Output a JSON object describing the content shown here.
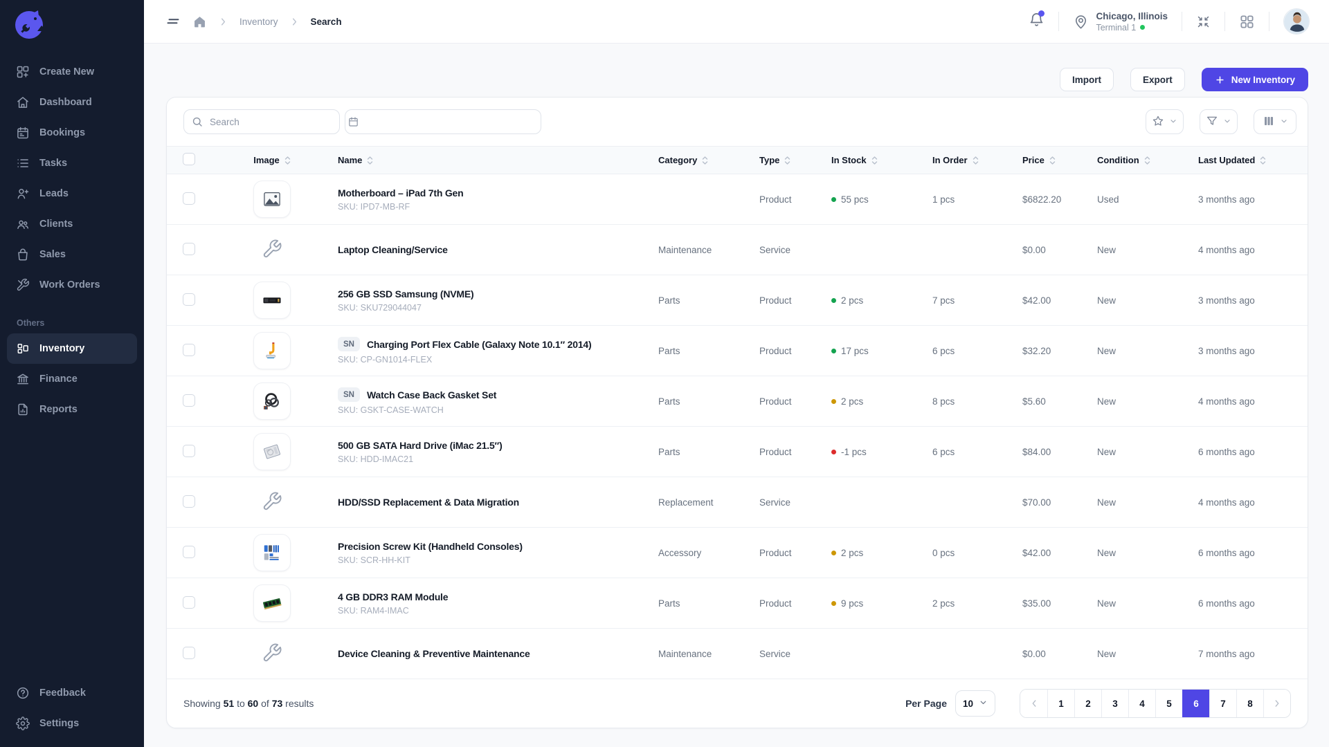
{
  "topbar": {
    "breadcrumb": {
      "level1": "Inventory",
      "level2": "Search"
    },
    "location": {
      "city": "Chicago, Illinois",
      "terminal": "Terminal 1"
    }
  },
  "sidebar": {
    "items": [
      {
        "label": "Create New",
        "icon": "grid-plus-icon"
      },
      {
        "label": "Dashboard",
        "icon": "home-icon"
      },
      {
        "label": "Bookings",
        "icon": "calendar-icon"
      },
      {
        "label": "Tasks",
        "icon": "list-icon"
      },
      {
        "label": "Leads",
        "icon": "user-plus-icon"
      },
      {
        "label": "Clients",
        "icon": "users-icon"
      },
      {
        "label": "Sales",
        "icon": "shopping-bag-icon"
      },
      {
        "label": "Work Orders",
        "icon": "tools-icon"
      }
    ],
    "section_label": "Others",
    "section_items": [
      {
        "label": "Inventory",
        "icon": "layout-icon",
        "active": true
      },
      {
        "label": "Finance",
        "icon": "bank-icon"
      },
      {
        "label": "Reports",
        "icon": "report-icon"
      }
    ],
    "bottom_items": [
      {
        "label": "Feedback",
        "icon": "help-circle-icon"
      },
      {
        "label": "Settings",
        "icon": "gear-icon"
      }
    ]
  },
  "toolbar": {
    "import_label": "Import",
    "export_label": "Export",
    "new_inventory_label": "New Inventory"
  },
  "filters": {
    "search_placeholder": "Search"
  },
  "table": {
    "sn_badge": "SN",
    "columns": [
      "Image",
      "Name",
      "Category",
      "Type",
      "In Stock",
      "In Order",
      "Price",
      "Condition",
      "Last Updated"
    ],
    "rows": [
      {
        "thumb": "photo",
        "sn": false,
        "name": "Motherboard – iPad 7th Gen",
        "sku": "SKU: IPD7-MB-RF",
        "category": "",
        "type": "Product",
        "in_stock": "55 pcs",
        "stock_status": "green",
        "in_order": "1 pcs",
        "price": "$6822.20",
        "condition": "Used",
        "updated": "3 months ago"
      },
      {
        "thumb": "wrench",
        "sn": false,
        "name": "Laptop Cleaning/Service",
        "sku": "",
        "category": "Maintenance",
        "type": "Service",
        "in_stock": "",
        "stock_status": "",
        "in_order": "",
        "price": "$0.00",
        "condition": "New",
        "updated": "4 months ago"
      },
      {
        "thumb": "ssd",
        "sn": false,
        "name": "256 GB SSD Samsung (NVME)",
        "sku": "SKU: SKU729044047",
        "category": "Parts",
        "type": "Product",
        "in_stock": "2 pcs",
        "stock_status": "green",
        "in_order": "7 pcs",
        "price": "$42.00",
        "condition": "New",
        "updated": "3 months ago"
      },
      {
        "thumb": "flex",
        "sn": true,
        "name": "Charging Port Flex Cable (Galaxy Note 10.1″ 2014)",
        "sku": "SKU: CP-GN1014-FLEX",
        "category": "Parts",
        "type": "Product",
        "in_stock": "17 pcs",
        "stock_status": "green",
        "in_order": "6 pcs",
        "price": "$32.20",
        "condition": "New",
        "updated": "3 months ago"
      },
      {
        "thumb": "gasket",
        "sn": true,
        "name": "Watch Case Back Gasket Set",
        "sku": "SKU: GSKT-CASE-WATCH",
        "category": "Parts",
        "type": "Product",
        "in_stock": "2 pcs",
        "stock_status": "amber",
        "in_order": "8 pcs",
        "price": "$5.60",
        "condition": "New",
        "updated": "4 months ago"
      },
      {
        "thumb": "hdd",
        "sn": false,
        "name": "500 GB SATA Hard Drive (iMac 21.5″)",
        "sku": "SKU: HDD-IMAC21",
        "category": "Parts",
        "type": "Product",
        "in_stock": "-1 pcs",
        "stock_status": "red",
        "in_order": "6 pcs",
        "price": "$84.00",
        "condition": "New",
        "updated": "6 months ago"
      },
      {
        "thumb": "wrench",
        "sn": false,
        "name": "HDD/SSD Replacement & Data Migration",
        "sku": "",
        "category": "Replacement",
        "type": "Service",
        "in_stock": "",
        "stock_status": "",
        "in_order": "",
        "price": "$70.00",
        "condition": "New",
        "updated": "4 months ago"
      },
      {
        "thumb": "screwkit",
        "sn": false,
        "name": "Precision Screw Kit (Handheld Consoles)",
        "sku": "SKU: SCR-HH-KIT",
        "category": "Accessory",
        "type": "Product",
        "in_stock": "2 pcs",
        "stock_status": "amber",
        "in_order": "0 pcs",
        "price": "$42.00",
        "condition": "New",
        "updated": "6 months ago"
      },
      {
        "thumb": "ram",
        "sn": false,
        "name": "4 GB DDR3 RAM Module",
        "sku": "SKU: RAM4-IMAC",
        "category": "Parts",
        "type": "Product",
        "in_stock": "9 pcs",
        "stock_status": "amber",
        "in_order": "2 pcs",
        "price": "$35.00",
        "condition": "New",
        "updated": "6 months ago"
      },
      {
        "thumb": "wrench",
        "sn": false,
        "name": "Device Cleaning & Preventive Maintenance",
        "sku": "",
        "category": "Maintenance",
        "type": "Service",
        "in_stock": "",
        "stock_status": "",
        "in_order": "",
        "price": "$0.00",
        "condition": "New",
        "updated": "7 months ago"
      }
    ]
  },
  "footer": {
    "showing": {
      "prefix": "Showing",
      "from": "51",
      "to_word": "to",
      "to": "60",
      "of_word": "of",
      "total": "73",
      "suffix": "results"
    },
    "per_page_label": "Per Page",
    "per_page_value": "10",
    "pages": [
      "1",
      "2",
      "3",
      "4",
      "5",
      "6",
      "7",
      "8"
    ],
    "active_page": "6"
  },
  "colors": {
    "accent": "#4f46e5",
    "sidebar_bg": "#141c2e",
    "stock_green": "#14a34f",
    "stock_amber": "#cd9705",
    "stock_red": "#dd2c2c",
    "online_green": "#22c55e",
    "notification_badge": "#5a55f0"
  }
}
